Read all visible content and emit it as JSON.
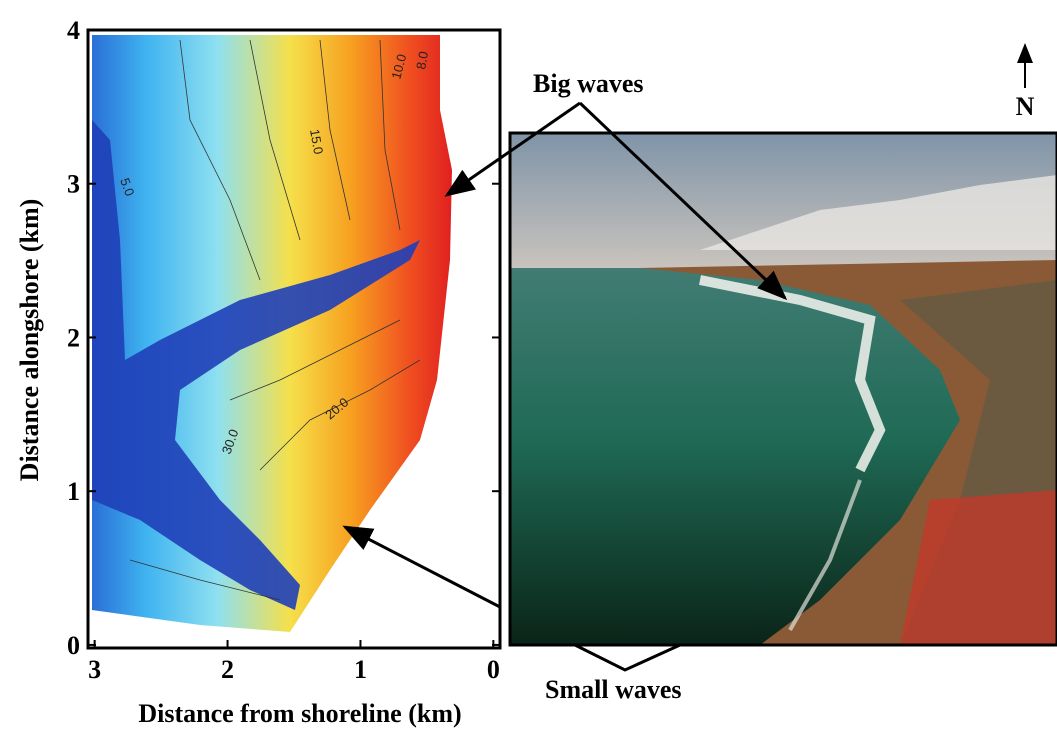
{
  "plot": {
    "x_axis": {
      "label": "Distance from shoreline (km)",
      "lim": [
        3.05,
        -0.05
      ],
      "ticks": [
        3,
        2,
        1,
        0
      ]
    },
    "y_axis": {
      "label": "Distance alongshore (km)",
      "lim": [
        -0.02,
        4
      ],
      "ticks": [
        0,
        1,
        2,
        3,
        4
      ]
    },
    "contour_labels": [
      "5.0",
      "10.0",
      "15.0",
      "20.0",
      "30.0",
      "8.0"
    ]
  },
  "annotations": {
    "big_waves": "Big waves",
    "small_waves": "Small waves",
    "north": "N"
  }
}
